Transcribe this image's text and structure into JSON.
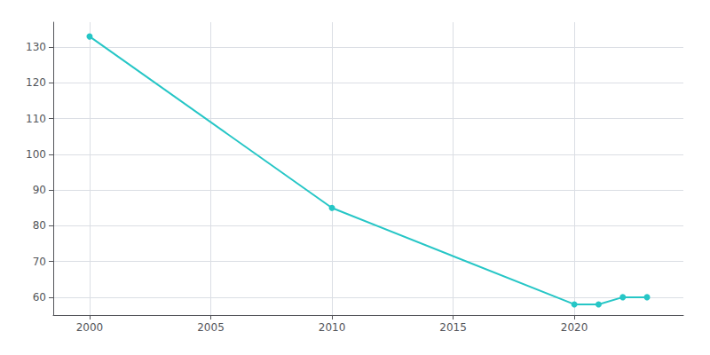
{
  "chart_data": {
    "type": "line",
    "x": [
      2000,
      2010,
      2020,
      2021,
      2022,
      2023
    ],
    "values": [
      133,
      85,
      58,
      58,
      60,
      60
    ],
    "color": "#26c6c6",
    "marker": "circle",
    "xlim": [
      1998.5,
      2024.5
    ],
    "ylim": [
      55,
      137
    ],
    "xticks": [
      2000,
      2005,
      2010,
      2015,
      2020
    ],
    "yticks": [
      60,
      70,
      80,
      90,
      100,
      110,
      120,
      130
    ],
    "grid": true
  }
}
